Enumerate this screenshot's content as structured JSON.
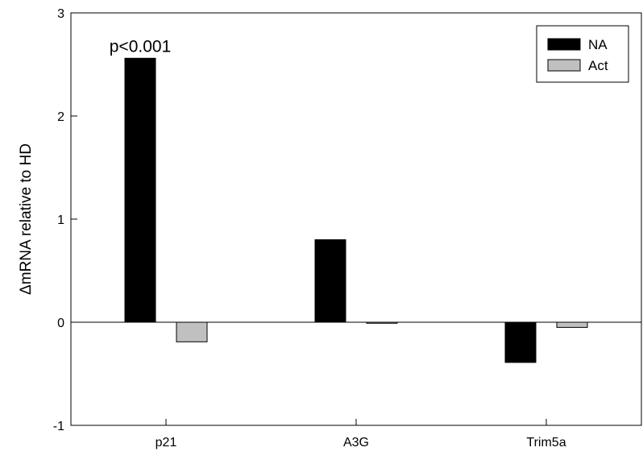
{
  "chart_data": {
    "type": "bar",
    "title": "",
    "xlabel": "",
    "ylabel": "ΔmRNA relative to HD",
    "categories": [
      "p21",
      "A3G",
      "Trim5a"
    ],
    "series": [
      {
        "name": "NA",
        "values": [
          2.56,
          0.8,
          -0.39
        ],
        "color": "#000000"
      },
      {
        "name": "Act",
        "values": [
          -0.19,
          -0.01,
          -0.05
        ],
        "color": "#c0c0c0"
      }
    ],
    "ylim": [
      -1,
      3
    ],
    "yticks": [
      "-1",
      "0",
      "1",
      "2",
      "3"
    ],
    "grid": false,
    "legend_position": "top-right",
    "annotations": [
      {
        "text": "p<0.001",
        "category": "p21",
        "series": "NA"
      }
    ]
  }
}
